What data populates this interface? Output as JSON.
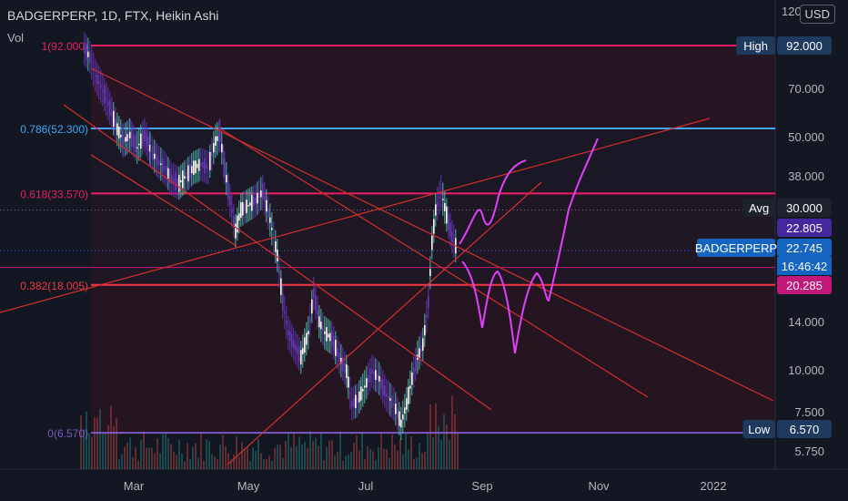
{
  "header": {
    "title": "BADGERPERP, 1D, FTX, Heikin Ashi",
    "volume_label": "Vol",
    "currency": "USD"
  },
  "chart_data": {
    "type": "candlestick",
    "x_axis_labels": [
      "Mar",
      "May",
      "Jul",
      "Sep",
      "Nov",
      "2022"
    ],
    "y_axis_labels": [
      "120.000",
      "70.000",
      "50.000",
      "38.000",
      "14.000",
      "10.000",
      "7.500",
      "5.750"
    ],
    "y_scale": "log",
    "price_labels": [
      {
        "name": "High",
        "value": "92.000",
        "color": "#1e3a5f"
      },
      {
        "name": "Avg",
        "value": "30.000",
        "color": "#1e222d"
      },
      {
        "name": "",
        "value": "22.805",
        "color": "#4527a0"
      },
      {
        "name": "BADGERPERP",
        "value": "22.745",
        "sub": "16:46:42",
        "color": "#1565c0"
      },
      {
        "name": "",
        "value": "20.285",
        "color": "#c2187a"
      },
      {
        "name": "Low",
        "value": "6.570",
        "color": "#1e3a5f"
      }
    ],
    "fib_levels": [
      {
        "label": "1(92.000)",
        "value": 92.0,
        "color": "#e91e63"
      },
      {
        "label": "0.786(52.300)",
        "value": 52.3,
        "color": "#42a5f5"
      },
      {
        "label": "0.618(33.570)",
        "value": 33.57,
        "color": "#e91e63"
      },
      {
        "label": "0.382(18.005)",
        "value": 18.005,
        "color": "#f23645"
      },
      {
        "label": "0(6.570)",
        "value": 6.57,
        "color": "#7e57c2"
      }
    ],
    "grid": false
  }
}
